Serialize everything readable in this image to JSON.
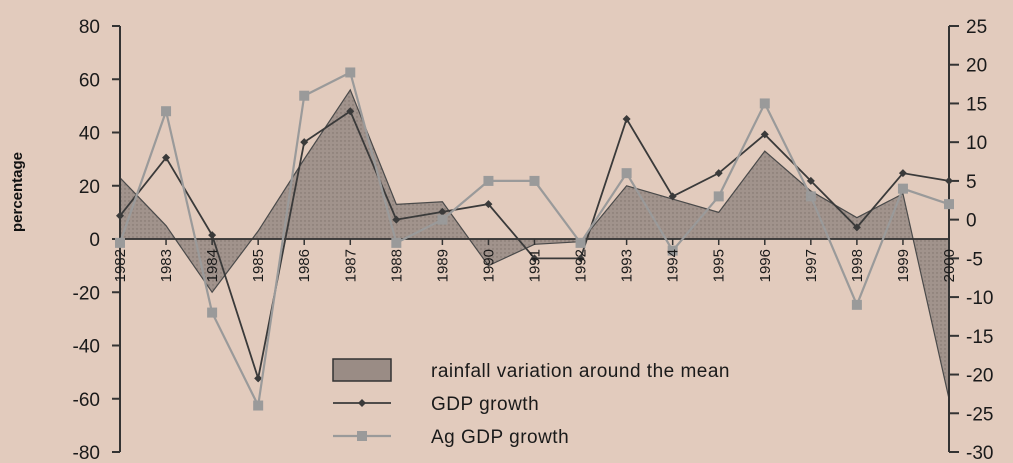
{
  "chart_data": {
    "type": "line",
    "ylabel": "percentage",
    "categories": [
      "1982",
      "1983",
      "1984",
      "1985",
      "1986",
      "1987",
      "1988",
      "1989",
      "1990",
      "1991",
      "1992",
      "1993",
      "1994",
      "1995",
      "1996",
      "1997",
      "1998",
      "1999",
      "2000"
    ],
    "y_left": {
      "min": -80,
      "max": 80,
      "step": 20,
      "ticks": [
        "80",
        "60",
        "40",
        "20",
        "0",
        "-20",
        "-40",
        "-60",
        "-80"
      ]
    },
    "y_right": {
      "min": -30,
      "max": 25,
      "step": 5,
      "ticks": [
        "25",
        "20",
        "15",
        "10",
        "5",
        "0",
        "-5",
        "-10",
        "-15",
        "-20",
        "-25",
        "-30"
      ]
    },
    "grid": false,
    "legend_position": "bottom-center",
    "series": [
      {
        "name": "rainfall variation around the mean",
        "kind": "area",
        "axis": "left",
        "color": "#9a8c85",
        "values": [
          23,
          5,
          -20,
          3,
          30,
          56,
          13,
          14,
          -10,
          -2,
          -1,
          20,
          15,
          10,
          33,
          18,
          8,
          17,
          -60
        ]
      },
      {
        "name": "GDP growth",
        "kind": "line",
        "axis": "right",
        "color": "#3a3a3a",
        "marker": "diamond",
        "values": [
          0.5,
          8,
          -2,
          -20.5,
          10,
          14,
          0,
          1,
          2,
          -5,
          -5,
          13,
          3,
          6,
          11,
          5,
          -1,
          6,
          5
        ]
      },
      {
        "name": "Ag GDP growth",
        "kind": "line",
        "axis": "right",
        "color": "#9a9a9a",
        "marker": "square",
        "values": [
          -3,
          14,
          -12,
          -24,
          16,
          19,
          -3,
          0,
          5,
          5,
          -3,
          6,
          -4,
          3,
          15,
          3,
          -11,
          4,
          2
        ]
      }
    ]
  }
}
